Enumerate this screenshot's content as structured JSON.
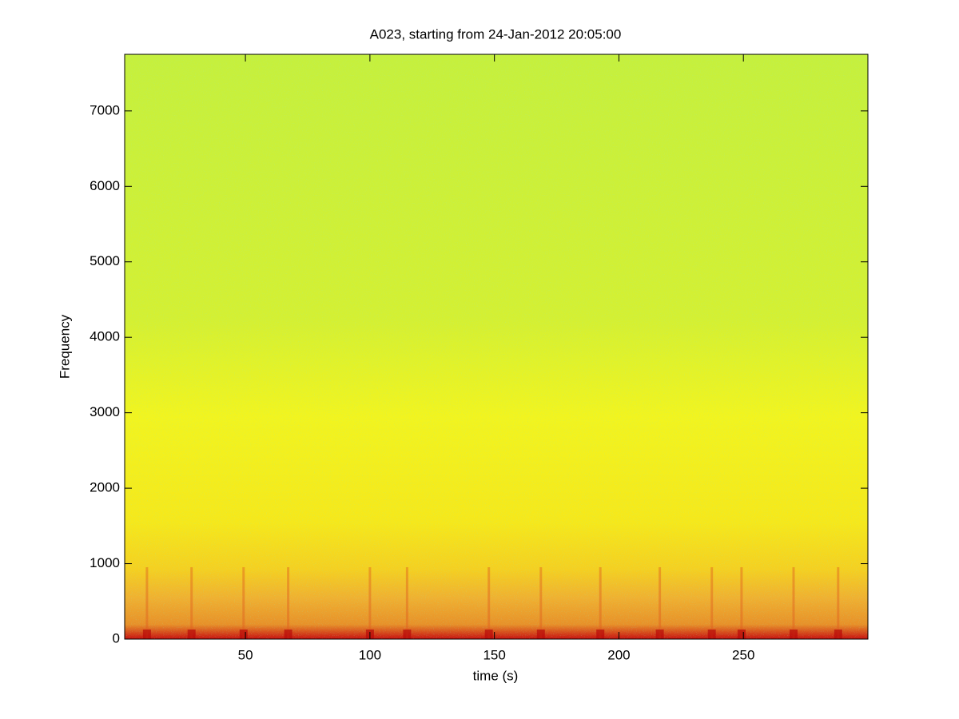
{
  "chart_data": {
    "type": "spectrogram",
    "title": "A023, starting from 24-Jan-2012 20:05:00",
    "xlabel": "time (s)",
    "ylabel": "Frequency",
    "xlim": [
      1.5,
      300
    ],
    "ylim": [
      0,
      7750
    ],
    "xticks": [
      50,
      100,
      150,
      200,
      250
    ],
    "yticks": [
      0,
      1000,
      2000,
      3000,
      4000,
      5000,
      6000,
      7000
    ]
  }
}
